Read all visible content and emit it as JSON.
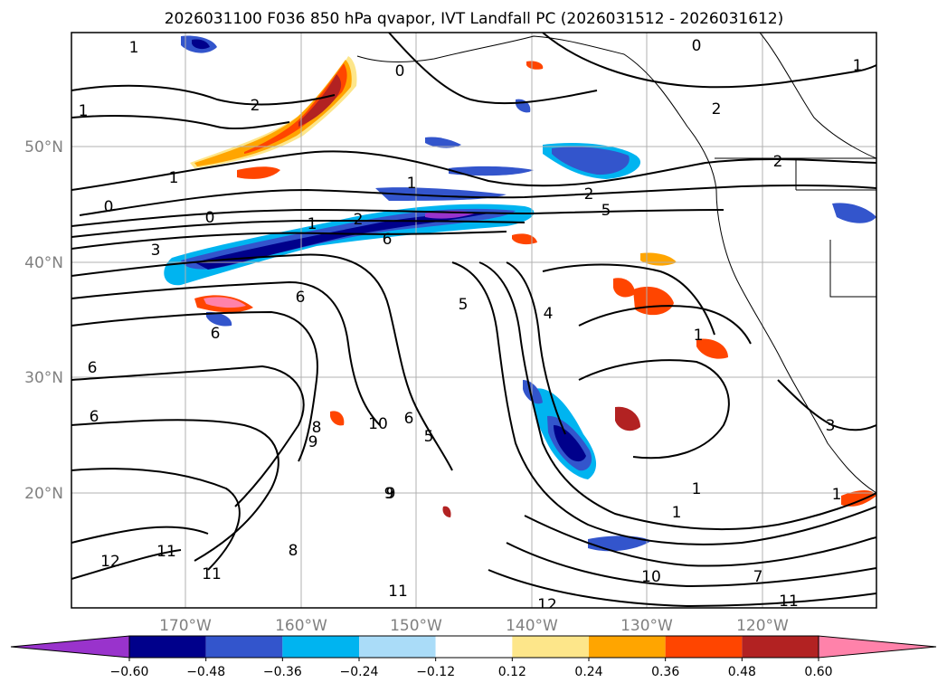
{
  "title": "2026031100 F036 850 hPa qvapor, IVT Landfall PC (2026031512 - 2026031612)",
  "lon_labels": [
    "170°W",
    "160°W",
    "150°W",
    "140°W",
    "130°W",
    "120°W"
  ],
  "lat_labels": [
    "50°N",
    "40°N",
    "30°N",
    "20°N"
  ],
  "colorbar": {
    "ticks": [
      "−0.60",
      "−0.48",
      "−0.36",
      "−0.24",
      "−0.12",
      "0.12",
      "0.24",
      "0.36",
      "0.48",
      "0.60"
    ],
    "colors": [
      "#9933cc",
      "#00008b",
      "#3355cc",
      "#00b4f0",
      "#aadcf8",
      "#ffffff",
      "#fde68a",
      "#ffa500",
      "#ff4500",
      "#b22222",
      "#ff82aa"
    ]
  },
  "contour_labels": [
    "1",
    "2",
    "1",
    "0",
    "1",
    "0",
    "0",
    "3",
    "1",
    "2",
    "6",
    "6",
    "6",
    "6",
    "6",
    "1",
    "2",
    "5",
    "4",
    "5",
    "6",
    "1",
    "9",
    "8",
    "9",
    "10",
    "5",
    "8",
    "11",
    "12",
    "11",
    "9",
    "1",
    "1",
    "10",
    "7",
    "11",
    "11",
    "12",
    "3",
    "1",
    "2",
    "2",
    "0",
    "1"
  ]
}
